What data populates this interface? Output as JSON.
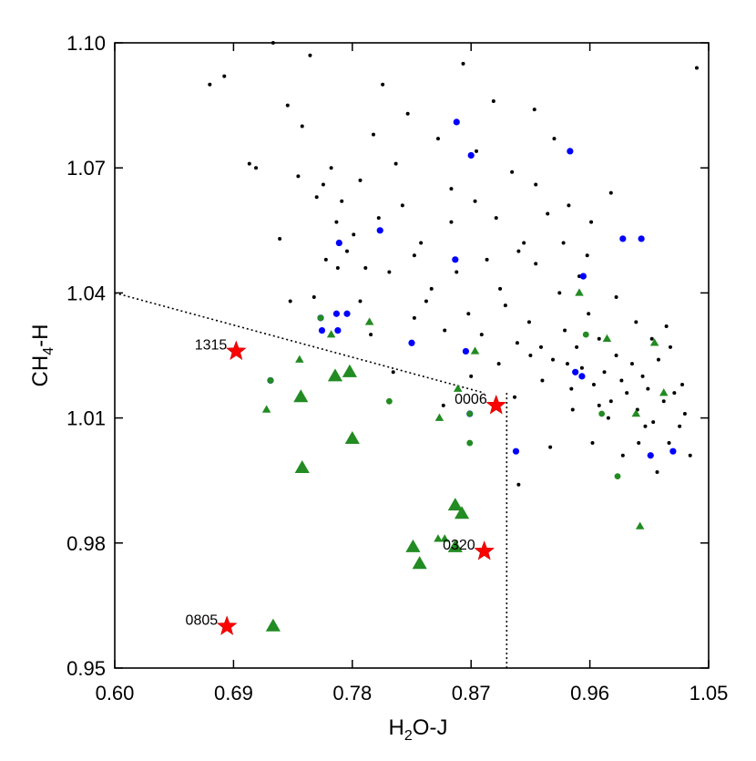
{
  "chart_data": {
    "type": "scatter",
    "title": "",
    "xlabel": {
      "main": "H",
      "sub": "2",
      "rest": "O-J"
    },
    "ylabel": {
      "main": "CH",
      "sub": "4",
      "rest": "-H"
    },
    "xlim": [
      0.6,
      1.05
    ],
    "ylim": [
      0.95,
      1.1
    ],
    "xticks": [
      0.6,
      0.69,
      0.78,
      0.87,
      0.96,
      1.05
    ],
    "xtick_labels": [
      "0.60",
      "0.69",
      "0.78",
      "0.87",
      "0.96",
      "1.05"
    ],
    "yticks": [
      0.95,
      0.98,
      1.01,
      1.04,
      1.07,
      1.1
    ],
    "ytick_labels": [
      "0.95",
      "0.98",
      "1.01",
      "1.04",
      "1.07",
      "1.10"
    ],
    "grid": false,
    "legend": "none",
    "colors": {
      "field": "#000000",
      "blue": "#0000ff",
      "green": "#228b22",
      "star": "#ff0000"
    },
    "selection_lines": {
      "diagonal": [
        [
          0.6,
          1.04
        ],
        [
          0.88,
          1.016
        ]
      ],
      "vertical": [
        [
          0.897,
          1.016
        ],
        [
          0.897,
          0.95
        ]
      ],
      "style": "dotted"
    },
    "series": [
      {
        "marker": "small-black-dot",
        "values": [
          [
            0.672,
            1.09
          ],
          [
            0.683,
            1.092
          ],
          [
            0.702,
            1.071
          ],
          [
            0.707,
            1.07
          ],
          [
            0.72,
            1.1
          ],
          [
            0.731,
            1.085
          ],
          [
            0.742,
            1.08
          ],
          [
            0.748,
            1.097
          ],
          [
            0.753,
            1.063
          ],
          [
            0.758,
            1.066
          ],
          [
            0.764,
            1.07
          ],
          [
            0.768,
            1.057
          ],
          [
            0.772,
            1.062
          ],
          [
            0.776,
            1.05
          ],
          [
            0.781,
            1.054
          ],
          [
            0.786,
            1.067
          ],
          [
            0.79,
            1.046
          ],
          [
            0.796,
            1.078
          ],
          [
            0.8,
            1.058
          ],
          [
            0.803,
            1.09
          ],
          [
            0.808,
            1.045
          ],
          [
            0.813,
            1.071
          ],
          [
            0.818,
            1.061
          ],
          [
            0.822,
            1.083
          ],
          [
            0.827,
            1.049
          ],
          [
            0.832,
            1.052
          ],
          [
            0.836,
            1.038
          ],
          [
            0.84,
            1.041
          ],
          [
            0.845,
            1.077
          ],
          [
            0.85,
            1.031
          ],
          [
            0.855,
            1.057
          ],
          [
            0.859,
            1.045
          ],
          [
            0.864,
            1.095
          ],
          [
            0.868,
            1.035
          ],
          [
            0.873,
            1.062
          ],
          [
            0.878,
            1.03
          ],
          [
            0.882,
            1.048
          ],
          [
            0.887,
            1.086
          ],
          [
            0.892,
            1.041
          ],
          [
            0.896,
            1.037
          ],
          [
            0.901,
            1.069
          ],
          [
            0.905,
            1.028
          ],
          [
            0.91,
            1.052
          ],
          [
            0.914,
            1.033
          ],
          [
            0.919,
            1.047
          ],
          [
            0.923,
            1.027
          ],
          [
            0.928,
            1.059
          ],
          [
            0.932,
            1.024
          ],
          [
            0.937,
            1.04
          ],
          [
            0.941,
            1.031
          ],
          [
            0.946,
            1.017
          ],
          [
            0.95,
            1.027
          ],
          [
            0.954,
            1.022
          ],
          [
            0.959,
            1.035
          ],
          [
            0.963,
            1.018
          ],
          [
            0.967,
            1.029
          ],
          [
            0.971,
            1.021
          ],
          [
            0.976,
            1.014
          ],
          [
            0.98,
            1.025
          ],
          [
            0.984,
            1.019
          ],
          [
            0.988,
            1.016
          ],
          [
            0.992,
            1.023
          ],
          [
            0.996,
            1.012
          ],
          [
            1.0,
            1.02
          ],
          [
            1.004,
            1.017
          ],
          [
            1.008,
            1.009
          ],
          [
            1.012,
            1.024
          ],
          [
            1.016,
            1.014
          ],
          [
            1.02,
            1.004
          ],
          [
            1.024,
            1.016
          ],
          [
            1.028,
            1.008
          ],
          [
            1.032,
            1.011
          ],
          [
            1.036,
            1.001
          ],
          [
            1.041,
            1.094
          ],
          [
            0.976,
            1.064
          ],
          [
            0.961,
            1.057
          ],
          [
            0.952,
            1.044
          ],
          [
            0.944,
            1.061
          ],
          [
            0.933,
            1.077
          ],
          [
            0.918,
            1.084
          ],
          [
            0.906,
            1.05
          ],
          [
            0.891,
            1.023
          ],
          [
            0.906,
            0.994
          ],
          [
            0.93,
            1.003
          ],
          [
            0.962,
            1.004
          ],
          [
            0.997,
            1.004
          ],
          [
            1.011,
            0.997
          ],
          [
            0.985,
            1.001
          ],
          [
            0.974,
            1.01
          ],
          [
            0.947,
            1.012
          ],
          [
            0.827,
            1.034
          ],
          [
            0.811,
            1.021
          ],
          [
            0.794,
            1.03
          ],
          [
            0.786,
            1.038
          ],
          [
            0.769,
            1.046
          ],
          [
            0.76,
            1.048
          ],
          [
            0.751,
            1.039
          ],
          [
            0.733,
            1.038
          ],
          [
            0.725,
            1.053
          ],
          [
            0.739,
            1.068
          ],
          [
            0.849,
            1.013
          ],
          [
            0.87,
            1.02
          ],
          [
            0.855,
            1.065
          ],
          [
            0.874,
            1.074
          ],
          [
            0.889,
            1.058
          ],
          [
            0.919,
            1.066
          ],
          [
            0.94,
            1.052
          ],
          [
            0.958,
            1.049
          ],
          [
            0.98,
            1.039
          ],
          [
            0.995,
            1.033
          ],
          [
            1.007,
            1.029
          ],
          [
            1.021,
            1.027
          ],
          [
            1.03,
            1.018
          ],
          [
            1.018,
            1.032
          ],
          [
            1.002,
            1.008
          ],
          [
            0.967,
            1.013
          ],
          [
            0.943,
            1.023
          ],
          [
            0.924,
            1.019
          ],
          [
            0.915,
            1.025
          ],
          [
            0.903,
            1.015
          ]
        ]
      },
      {
        "marker": "blue-dot",
        "values": [
          [
            0.859,
            1.081
          ],
          [
            0.87,
            1.073
          ],
          [
            0.945,
            1.074
          ],
          [
            0.77,
            1.052
          ],
          [
            0.801,
            1.055
          ],
          [
            0.858,
            1.048
          ],
          [
            0.955,
            1.044
          ],
          [
            0.985,
            1.053
          ],
          [
            0.999,
            1.053
          ],
          [
            0.756,
            1.034
          ],
          [
            0.757,
            1.031
          ],
          [
            0.768,
            1.035
          ],
          [
            0.776,
            1.035
          ],
          [
            0.769,
            1.031
          ],
          [
            0.825,
            1.028
          ],
          [
            0.866,
            1.026
          ],
          [
            0.949,
            1.021
          ],
          [
            0.954,
            1.02
          ],
          [
            0.718,
            1.019
          ],
          [
            0.869,
            1.011
          ],
          [
            0.904,
            1.002
          ],
          [
            1.006,
            1.001
          ],
          [
            1.023,
            1.002
          ]
        ]
      },
      {
        "marker": "green-dot",
        "values": [
          [
            0.756,
            1.034
          ],
          [
            0.718,
            1.019
          ],
          [
            0.808,
            1.014
          ],
          [
            0.869,
            1.011
          ],
          [
            0.869,
            1.004
          ],
          [
            0.957,
            1.03
          ],
          [
            0.981,
            0.996
          ],
          [
            0.969,
            1.011
          ]
        ]
      },
      {
        "marker": "green-triangle-small",
        "values": [
          [
            0.764,
            1.03
          ],
          [
            0.793,
            1.033
          ],
          [
            0.74,
            1.024
          ],
          [
            0.715,
            1.012
          ],
          [
            0.846,
            1.01
          ],
          [
            0.86,
            1.017
          ],
          [
            0.873,
            1.026
          ],
          [
            0.973,
            1.029
          ],
          [
            0.952,
            1.04
          ],
          [
            1.009,
            1.028
          ],
          [
            1.016,
            1.016
          ],
          [
            0.995,
            1.011
          ],
          [
            0.998,
            0.984
          ],
          [
            0.845,
            0.981
          ],
          [
            0.85,
            0.981
          ]
        ]
      },
      {
        "marker": "green-triangle-large",
        "values": [
          [
            0.741,
            1.015
          ],
          [
            0.767,
            1.02
          ],
          [
            0.778,
            1.021
          ],
          [
            0.78,
            1.005
          ],
          [
            0.742,
            0.998
          ],
          [
            0.858,
            0.989
          ],
          [
            0.863,
            0.987
          ],
          [
            0.858,
            0.979
          ],
          [
            0.826,
            0.979
          ],
          [
            0.831,
            0.975
          ],
          [
            0.72,
            0.96
          ]
        ]
      },
      {
        "marker": "red-star",
        "values": [
          [
            0.692,
            1.026,
            "1315"
          ],
          [
            0.889,
            1.013,
            "0006"
          ],
          [
            0.88,
            0.978,
            "0320"
          ],
          [
            0.685,
            0.96,
            "0805"
          ]
        ]
      }
    ]
  }
}
